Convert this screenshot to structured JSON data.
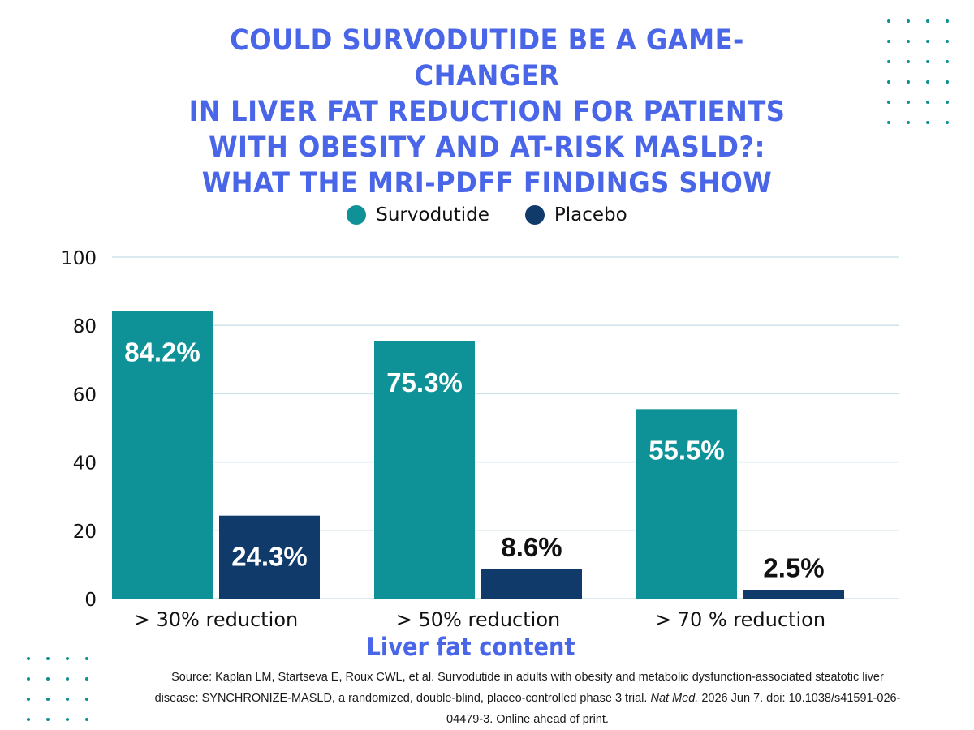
{
  "title_lines": [
    "COULD SURVODUTIDE BE A GAME-CHANGER",
    "IN LIVER FAT REDUCTION FOR PATIENTS",
    "WITH OBESITY AND AT-RISK MASLD?:",
    "WHAT THE MRI-PDFF FINDINGS SHOW"
  ],
  "colors": {
    "title": "#4a66e8",
    "survodutide": "#0e9297",
    "placebo": "#0f3a6a",
    "decor_dots": "#0e8f95",
    "gridline": "#cfe3ea"
  },
  "chart_data": {
    "type": "bar",
    "categories": [
      "> 30% reduction",
      "> 50% reduction",
      "> 70 % reduction"
    ],
    "series": [
      {
        "name": "Survodutide",
        "values": [
          84.2,
          75.3,
          55.5
        ],
        "labels": [
          "84.2%",
          "75.3%",
          "55.5%"
        ]
      },
      {
        "name": "Placebo",
        "values": [
          24.3,
          8.6,
          2.5
        ],
        "labels": [
          "24.3%",
          "8.6%",
          "2.5%"
        ]
      }
    ],
    "ylim": [
      0,
      100
    ],
    "yticks": [
      0,
      20,
      40,
      60,
      80,
      100
    ],
    "xlabel": "Liver fat content",
    "ylabel": "",
    "legend_position": "top-center",
    "grid": true
  },
  "source": {
    "text_before": "Source: Kaplan LM, Startseva E, Roux CWL, et al. Survodutide in adults with obesity and metabolic dysfunction-associated steatotic liver disease: SYNCHRONIZE-MASLD, a randomized, double-blind, placeo-controlled phase 3 trial.",
    "journal": "Nat Med.",
    "text_after": "2026 Jun 7. doi: 10.1038/s41591-026-04479-3. Online ahead of print."
  }
}
